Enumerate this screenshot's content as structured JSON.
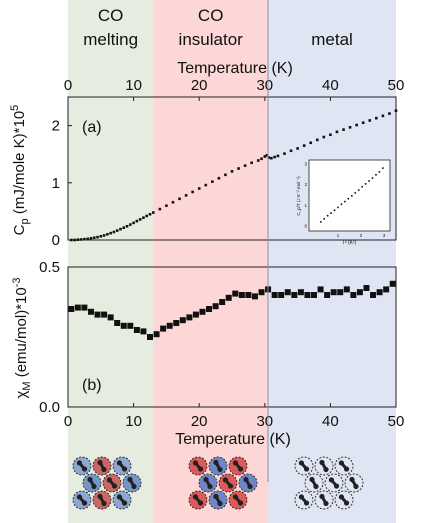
{
  "regions": [
    {
      "label_lines": [
        "CO",
        "melting"
      ],
      "x_start": 0,
      "x_end": 13,
      "color": "#e6ece0"
    },
    {
      "label_lines": [
        "CO",
        "insulator"
      ],
      "x_start": 13,
      "x_end": 30.5,
      "color": "#fdd7d6"
    },
    {
      "label_lines": [
        "metal"
      ],
      "x_start": 30.5,
      "x_end": 50,
      "color": "#dfe5f2"
    }
  ],
  "chart_data": [
    {
      "type": "scatter",
      "panel_label": "(a)",
      "xlabel": "Temperature (K)",
      "xlabel_position": "top",
      "ylabel": "C_p (mJ/mole K)*10^5",
      "xlim": [
        0,
        50
      ],
      "ylim": [
        0,
        2.5
      ],
      "xticks": [
        0,
        10,
        20,
        30,
        40,
        50
      ],
      "yticks": [
        0,
        1,
        2
      ],
      "ytick_labels": [
        "0",
        "1",
        "2"
      ],
      "series": [
        {
          "marker": "dot",
          "x": [
            0.5,
            1,
            1.5,
            2,
            2.5,
            3,
            3.5,
            4,
            4.5,
            5,
            5.5,
            6,
            6.5,
            7,
            7.5,
            8,
            8.5,
            9,
            9.5,
            10,
            10.5,
            11,
            11.5,
            12,
            12.5,
            13,
            14,
            15,
            16,
            17,
            18,
            19,
            20,
            21,
            22,
            23,
            24,
            25,
            26,
            27,
            28,
            29,
            29.5,
            30,
            30.3,
            30.6,
            31,
            31.5,
            32,
            33,
            34,
            35,
            36,
            37,
            38,
            39,
            40,
            41,
            42,
            43,
            44,
            45,
            46,
            47,
            48,
            49,
            50
          ],
          "y": [
            0.0,
            0.0,
            0.005,
            0.01,
            0.015,
            0.02,
            0.03,
            0.04,
            0.05,
            0.065,
            0.08,
            0.1,
            0.12,
            0.14,
            0.165,
            0.19,
            0.215,
            0.24,
            0.27,
            0.3,
            0.33,
            0.36,
            0.39,
            0.42,
            0.45,
            0.48,
            0.54,
            0.6,
            0.66,
            0.72,
            0.78,
            0.84,
            0.9,
            0.96,
            1.02,
            1.08,
            1.14,
            1.2,
            1.25,
            1.3,
            1.35,
            1.39,
            1.42,
            1.46,
            1.48,
            1.44,
            1.43,
            1.45,
            1.47,
            1.51,
            1.56,
            1.6,
            1.65,
            1.7,
            1.75,
            1.8,
            1.84,
            1.89,
            1.93,
            1.97,
            2.01,
            2.05,
            2.09,
            2.13,
            2.17,
            2.21,
            2.26
          ]
        }
      ],
      "inset": {
        "xlabel": "T² (K²)",
        "ylabel": "C_p/T (J K⁻² mol⁻¹)",
        "xticks": [
          1,
          2,
          3
        ],
        "yticks": [
          0,
          1,
          2,
          3
        ],
        "x": [
          0.25,
          0.4,
          0.55,
          0.7,
          0.85,
          1.0,
          1.15,
          1.3,
          1.45,
          1.6,
          1.75,
          1.9,
          2.05,
          2.2,
          2.35,
          2.5,
          2.65,
          2.8,
          2.95
        ],
        "y": [
          0.2,
          0.35,
          0.5,
          0.62,
          0.76,
          0.9,
          1.05,
          1.18,
          1.32,
          1.46,
          1.6,
          1.74,
          1.9,
          2.04,
          2.18,
          2.32,
          2.48,
          2.62,
          2.8
        ]
      }
    },
    {
      "type": "scatter",
      "panel_label": "(b)",
      "xlabel": "Temperature (K)",
      "xlabel_position": "bottom",
      "ylabel": "χ_M (emu/mol)*10^-3",
      "xlim": [
        0,
        50
      ],
      "ylim": [
        0,
        0.5
      ],
      "xticks": [
        0,
        10,
        20,
        30,
        40,
        50
      ],
      "yticks": [
        0,
        0.5
      ],
      "ytick_labels": [
        "0.0",
        "0.5"
      ],
      "series": [
        {
          "marker": "square",
          "x": [
            0.5,
            1.5,
            2.5,
            3.5,
            4.5,
            5.5,
            6.5,
            7.5,
            8.5,
            9.5,
            10.5,
            11.5,
            12.5,
            13.5,
            14.5,
            15.5,
            16.5,
            17.5,
            18.5,
            19.5,
            20.5,
            21.5,
            22.5,
            23.5,
            24.5,
            25.5,
            26.5,
            27.5,
            28.5,
            29.5,
            30.5,
            31.5,
            32.5,
            33.5,
            34.5,
            35.5,
            36.5,
            37.5,
            38.5,
            39.5,
            40.5,
            41.5,
            42.5,
            43.5,
            44.5,
            45.5,
            46.5,
            47.5,
            48.5,
            49.5
          ],
          "y": [
            0.35,
            0.355,
            0.355,
            0.34,
            0.33,
            0.33,
            0.32,
            0.3,
            0.29,
            0.29,
            0.275,
            0.27,
            0.25,
            0.26,
            0.28,
            0.29,
            0.3,
            0.31,
            0.32,
            0.33,
            0.34,
            0.35,
            0.36,
            0.375,
            0.39,
            0.405,
            0.4,
            0.4,
            0.395,
            0.41,
            0.42,
            0.4,
            0.4,
            0.41,
            0.4,
            0.41,
            0.4,
            0.4,
            0.42,
            0.4,
            0.41,
            0.41,
            0.42,
            0.4,
            0.41,
            0.425,
            0.4,
            0.41,
            0.42,
            0.44
          ]
        }
      ]
    }
  ]
}
